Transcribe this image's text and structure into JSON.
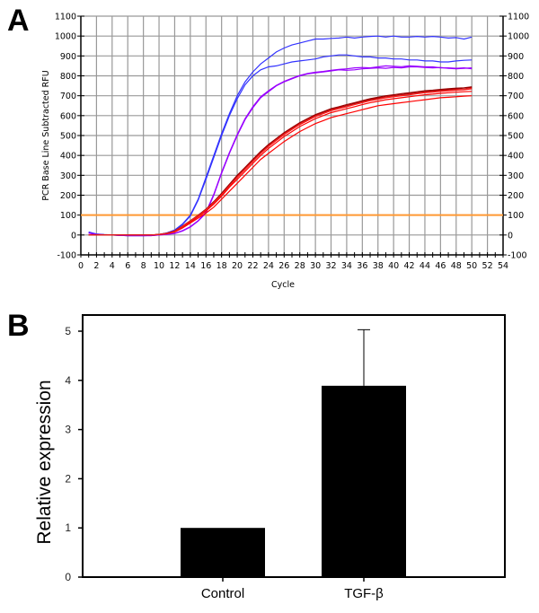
{
  "panels": {
    "a_label": "A",
    "b_label": "B"
  },
  "chart_data": [
    {
      "type": "line",
      "panel": "A",
      "title": "",
      "xlabel": "Cycle",
      "ylabel": "PCR Base Line Subtracted RFU",
      "xlim": [
        0,
        54
      ],
      "ylim": [
        -100,
        1100
      ],
      "x_ticks": [
        0,
        2,
        4,
        6,
        8,
        10,
        12,
        14,
        16,
        18,
        20,
        22,
        24,
        26,
        28,
        30,
        32,
        34,
        36,
        38,
        40,
        42,
        44,
        46,
        48,
        50,
        52,
        54
      ],
      "y_ticks": [
        -100,
        0,
        100,
        200,
        300,
        400,
        500,
        600,
        700,
        800,
        900,
        1000,
        1100
      ],
      "y_axis_right_mirror": true,
      "grid": true,
      "threshold": {
        "value": 100,
        "color": "#ff9933"
      },
      "x": [
        1,
        2,
        3,
        4,
        5,
        6,
        7,
        8,
        9,
        10,
        11,
        12,
        13,
        14,
        15,
        16,
        17,
        18,
        19,
        20,
        21,
        22,
        23,
        24,
        25,
        26,
        27,
        28,
        29,
        30,
        31,
        32,
        33,
        34,
        35,
        36,
        37,
        38,
        39,
        40,
        41,
        42,
        43,
        44,
        45,
        46,
        47,
        48,
        49,
        50
      ],
      "series": [
        {
          "name": "blue-1",
          "color": "#3333ff",
          "values": [
            15,
            5,
            2,
            0,
            -2,
            -3,
            -3,
            -3,
            -2,
            2,
            10,
            25,
            55,
            100,
            180,
            290,
            400,
            510,
            610,
            700,
            770,
            820,
            860,
            890,
            920,
            940,
            955,
            965,
            975,
            985,
            985,
            988,
            990,
            995,
            990,
            995,
            998,
            1000,
            995,
            1000,
            995,
            995,
            998,
            995,
            998,
            995,
            990,
            992,
            985,
            995
          ]
        },
        {
          "name": "blue-2",
          "color": "#3333ff",
          "values": [
            12,
            4,
            1,
            0,
            -2,
            -3,
            -3,
            -3,
            -2,
            2,
            10,
            24,
            52,
            96,
            175,
            280,
            390,
            500,
            600,
            685,
            755,
            800,
            830,
            845,
            850,
            860,
            870,
            875,
            880,
            885,
            895,
            900,
            905,
            905,
            900,
            895,
            895,
            890,
            890,
            885,
            885,
            880,
            880,
            875,
            875,
            870,
            870,
            875,
            878,
            880
          ]
        },
        {
          "name": "purple-1",
          "color": "#9900ff",
          "values": [
            10,
            3,
            1,
            0,
            -2,
            -3,
            -3,
            -3,
            -3,
            0,
            3,
            8,
            20,
            40,
            70,
            110,
            200,
            310,
            410,
            500,
            580,
            640,
            690,
            720,
            750,
            770,
            785,
            800,
            810,
            815,
            820,
            825,
            830,
            828,
            830,
            835,
            838,
            840,
            838,
            842,
            840,
            845,
            845,
            842,
            840,
            842,
            838,
            835,
            838,
            840
          ]
        },
        {
          "name": "purple-2",
          "color": "#9900ff",
          "values": [
            10,
            3,
            1,
            0,
            -2,
            -3,
            -3,
            -3,
            -3,
            0,
            3,
            8,
            22,
            42,
            72,
            115,
            205,
            315,
            415,
            505,
            585,
            645,
            695,
            725,
            752,
            772,
            788,
            802,
            812,
            818,
            822,
            828,
            832,
            835,
            840,
            842,
            840,
            845,
            850,
            848,
            846,
            850,
            848,
            845,
            845,
            840,
            840,
            838,
            840,
            835
          ]
        },
        {
          "name": "red-1",
          "color": "#ff0000",
          "values": [
            0,
            0,
            0,
            0,
            0,
            0,
            0,
            0,
            0,
            2,
            6,
            15,
            35,
            60,
            85,
            110,
            140,
            180,
            220,
            260,
            300,
            340,
            380,
            410,
            440,
            470,
            495,
            520,
            540,
            560,
            575,
            590,
            600,
            610,
            620,
            630,
            640,
            650,
            655,
            660,
            665,
            670,
            675,
            680,
            685,
            690,
            692,
            695,
            698,
            700
          ]
        },
        {
          "name": "red-2",
          "color": "#ff0000",
          "values": [
            0,
            0,
            0,
            0,
            0,
            0,
            0,
            0,
            0,
            3,
            8,
            18,
            40,
            65,
            92,
            120,
            155,
            195,
            240,
            280,
            320,
            360,
            400,
            435,
            465,
            495,
            520,
            545,
            565,
            585,
            600,
            615,
            625,
            635,
            645,
            655,
            665,
            672,
            680,
            685,
            690,
            695,
            700,
            705,
            708,
            712,
            715,
            718,
            720,
            722
          ]
        },
        {
          "name": "red-3",
          "color": "#ff0000",
          "values": [
            0,
            0,
            0,
            0,
            0,
            0,
            0,
            0,
            0,
            3,
            8,
            18,
            42,
            68,
            95,
            125,
            160,
            200,
            245,
            290,
            330,
            370,
            410,
            445,
            475,
            505,
            530,
            555,
            575,
            595,
            610,
            625,
            635,
            645,
            655,
            665,
            675,
            682,
            690,
            695,
            700,
            705,
            710,
            715,
            718,
            722,
            725,
            728,
            730,
            735
          ]
        },
        {
          "name": "darkred-1",
          "color": "#990000",
          "values": [
            0,
            0,
            0,
            0,
            0,
            0,
            0,
            0,
            0,
            3,
            9,
            20,
            45,
            72,
            100,
            130,
            168,
            210,
            255,
            300,
            340,
            380,
            420,
            455,
            485,
            515,
            540,
            565,
            585,
            605,
            620,
            635,
            645,
            655,
            665,
            675,
            685,
            692,
            700,
            705,
            710,
            715,
            720,
            725,
            728,
            732,
            735,
            738,
            740,
            745
          ]
        },
        {
          "name": "darkred-2",
          "color": "#990000",
          "values": [
            0,
            0,
            0,
            0,
            0,
            0,
            0,
            0,
            0,
            3,
            9,
            20,
            44,
            70,
            98,
            128,
            165,
            205,
            250,
            295,
            335,
            375,
            415,
            450,
            480,
            510,
            535,
            560,
            580,
            600,
            615,
            630,
            640,
            650,
            660,
            670,
            680,
            688,
            695,
            700,
            705,
            710,
            715,
            720,
            725,
            728,
            730,
            735,
            738,
            742
          ]
        },
        {
          "name": "red-4",
          "color": "#ee2222",
          "values": [
            0,
            0,
            0,
            0,
            0,
            0,
            0,
            0,
            0,
            3,
            8,
            19,
            43,
            70,
            97,
            127,
            163,
            203,
            248,
            292,
            332,
            372,
            412,
            447,
            478,
            508,
            533,
            558,
            578,
            598,
            612,
            627,
            637,
            647,
            657,
            667,
            677,
            684,
            692,
            697,
            702,
            707,
            712,
            717,
            720,
            724,
            727,
            730,
            732,
            738
          ]
        }
      ]
    },
    {
      "type": "bar",
      "panel": "B",
      "title": "",
      "xlabel": "",
      "ylabel": "Relative expression",
      "categories": [
        "Control",
        "TGF-β"
      ],
      "values": [
        1.0,
        3.89
      ],
      "error_upper": [
        0,
        1.14
      ],
      "ylim": [
        0,
        5.3
      ],
      "y_ticks": [
        0,
        1,
        2,
        3,
        4,
        5
      ],
      "bar_color": "#000000",
      "grid": false
    }
  ]
}
